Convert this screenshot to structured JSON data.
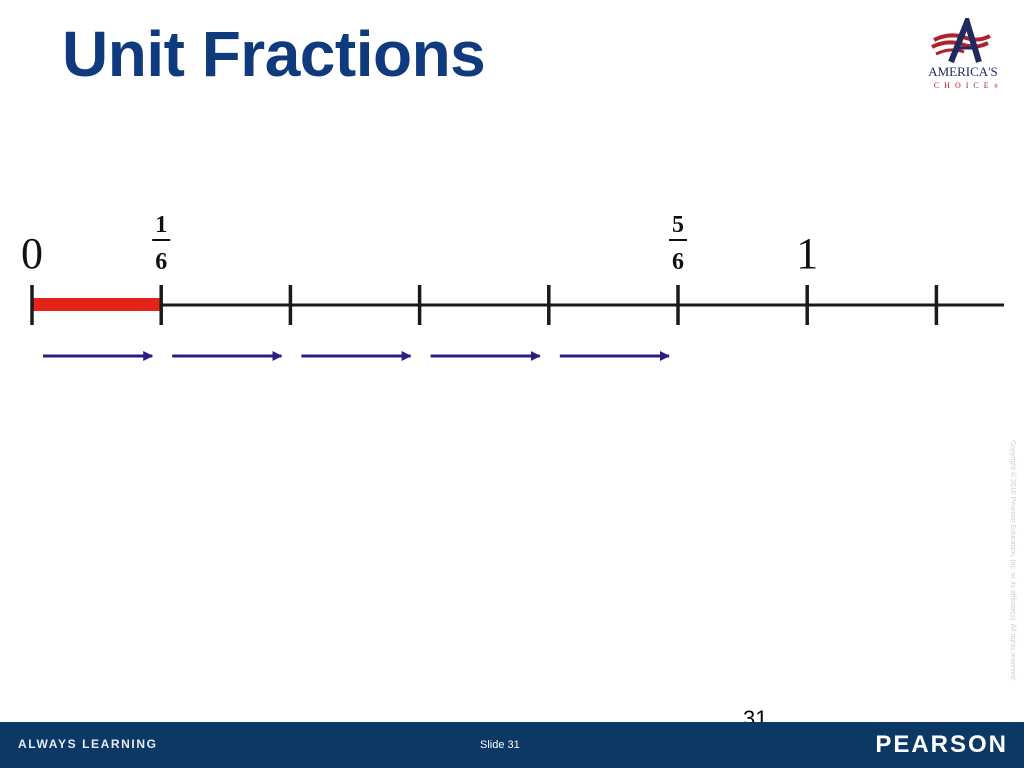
{
  "slide": {
    "title": "Unit Fractions",
    "page_number": "31",
    "copyright": "Copyright © 2010 Pearson Education, Inc. or its affiliate(s). All rights reserved."
  },
  "logo": {
    "name": "AMERICA'S",
    "sub": "CHOICE",
    "mark": "®"
  },
  "number_line": {
    "labels": [
      {
        "tick": 0,
        "text": "0"
      },
      {
        "tick": 1,
        "numerator": "1",
        "denominator": "6"
      },
      {
        "tick": 5,
        "numerator": "5",
        "denominator": "6"
      },
      {
        "tick": 6,
        "text": "1"
      }
    ],
    "tick_count": 8,
    "highlight": {
      "from_tick": 0,
      "to_tick": 1,
      "color": "#e3241b"
    },
    "jump_arrows": 5,
    "arrow_color": "#2e1c86",
    "line_color": "#1a1a1a"
  },
  "footer": {
    "tagline": "ALWAYS LEARNING",
    "slide_label": "Slide 31",
    "brand": "PEARSON",
    "background": "#0c3866"
  }
}
